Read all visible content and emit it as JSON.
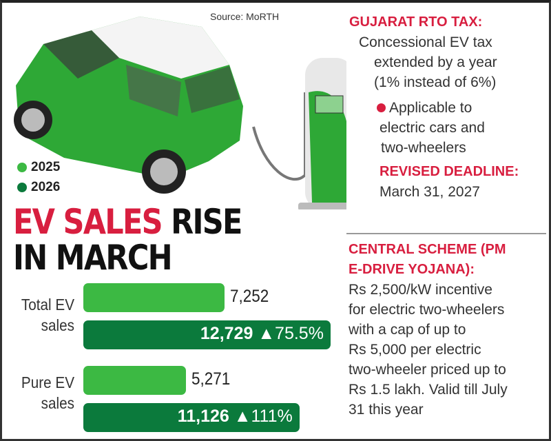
{
  "source": "Source: MoRTH",
  "legend": [
    {
      "label": "2025",
      "color": "#3cb943"
    },
    {
      "label": "2026",
      "color": "#0b7a3c"
    }
  ],
  "headline": {
    "part1": "EV SALES",
    "part2": " RISE",
    "line2": "IN MARCH"
  },
  "chart_data": {
    "type": "bar",
    "orientation": "horizontal",
    "categories": [
      "Total EV sales",
      "Pure EV sales"
    ],
    "series": [
      {
        "name": "2025",
        "values": [
          7252,
          5271
        ],
        "labels": [
          "7,252",
          "5,271"
        ],
        "color": "#3cb943"
      },
      {
        "name": "2026",
        "values": [
          12729,
          11126
        ],
        "labels": [
          "12,729",
          "11,126"
        ],
        "change": [
          "▲75.5%",
          "▲111%"
        ],
        "color": "#0b7a3c"
      }
    ],
    "category_lines": [
      [
        "Total EV",
        "sales"
      ],
      [
        "Pure EV",
        "sales"
      ]
    ]
  },
  "right": {
    "gujarat_head": "GUJARAT RTO TAX:",
    "gujarat_lines": [
      "Concessional EV tax",
      "extended by a year",
      "(1% instead of 6%)"
    ],
    "bullet_lines": [
      "Applicable to",
      "electric cars and",
      "two-wheelers"
    ],
    "deadline_head": "REVISED DEADLINE:",
    "deadline": "March 31, 2027",
    "central_head": [
      "CENTRAL SCHEME (PM",
      "E-DRIVE YOJANA):"
    ],
    "central_lines": [
      "Rs 2,500/kW incentive",
      "for electric two-wheelers",
      "with a cap of up to",
      "Rs 5,000 per electric",
      "two-wheeler priced up to",
      "Rs 1.5 lakh. Valid till July",
      "31 this year"
    ]
  },
  "colors": {
    "accent_red": "#d81e3f",
    "green_2025": "#3cb943",
    "green_2026": "#0b7a3c"
  }
}
